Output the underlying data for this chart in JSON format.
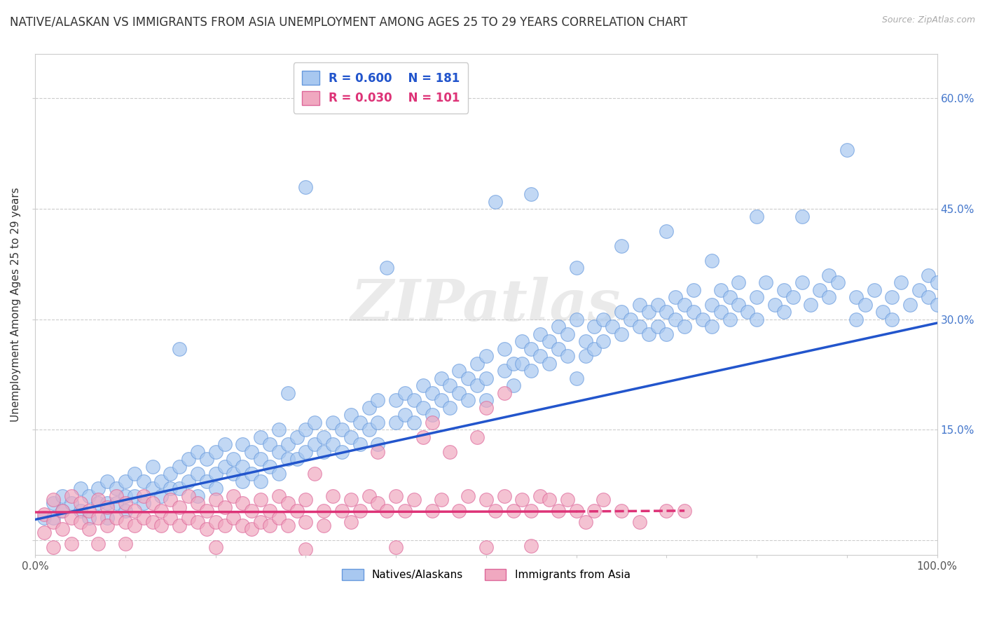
{
  "title": "NATIVE/ALASKAN VS IMMIGRANTS FROM ASIA UNEMPLOYMENT AMONG AGES 25 TO 29 YEARS CORRELATION CHART",
  "source": "Source: ZipAtlas.com",
  "ylabel": "Unemployment Among Ages 25 to 29 years",
  "xlim": [
    0.0,
    1.0
  ],
  "ylim": [
    -0.02,
    0.66
  ],
  "x_ticks": [
    0.0,
    0.1,
    0.2,
    0.3,
    0.4,
    0.5,
    0.6,
    0.7,
    0.8,
    0.9,
    1.0
  ],
  "x_tick_labels": [
    "0.0%",
    "",
    "",
    "",
    "",
    "",
    "",
    "",
    "",
    "",
    "100.0%"
  ],
  "y_ticks": [
    0.0,
    0.15,
    0.3,
    0.45,
    0.6
  ],
  "y_tick_labels_right": [
    "",
    "15.0%",
    "30.0%",
    "45.0%",
    "60.0%"
  ],
  "series": [
    {
      "name": "Natives/Alaskans",
      "R": 0.6,
      "N": 181,
      "color": "#a8c8f0",
      "edge_color": "#6699dd",
      "line_color": "#2255cc",
      "regression_start_x": 0.0,
      "regression_start_y": 0.028,
      "regression_end_x": 1.0,
      "regression_end_y": 0.295
    },
    {
      "name": "Immigrants from Asia",
      "R": 0.03,
      "N": 101,
      "color": "#f0a8c0",
      "edge_color": "#dd6699",
      "line_color": "#dd3377",
      "regression_start_x": 0.0,
      "regression_start_y": 0.038,
      "regression_end_x": 0.72,
      "regression_end_y": 0.04
    }
  ],
  "watermark": "ZIPatlas",
  "background_color": "#ffffff",
  "grid_color": "#cccccc",
  "title_fontsize": 12,
  "axis_label_fontsize": 11,
  "tick_fontsize": 11,
  "legend_fontsize": 12,
  "native_points": [
    [
      0.01,
      0.03
    ],
    [
      0.02,
      0.05
    ],
    [
      0.02,
      0.03
    ],
    [
      0.03,
      0.06
    ],
    [
      0.03,
      0.04
    ],
    [
      0.04,
      0.05
    ],
    [
      0.05,
      0.07
    ],
    [
      0.05,
      0.04
    ],
    [
      0.06,
      0.06
    ],
    [
      0.06,
      0.03
    ],
    [
      0.07,
      0.07
    ],
    [
      0.07,
      0.05
    ],
    [
      0.08,
      0.08
    ],
    [
      0.08,
      0.05
    ],
    [
      0.08,
      0.03
    ],
    [
      0.09,
      0.07
    ],
    [
      0.09,
      0.05
    ],
    [
      0.1,
      0.08
    ],
    [
      0.1,
      0.06
    ],
    [
      0.1,
      0.04
    ],
    [
      0.11,
      0.09
    ],
    [
      0.11,
      0.06
    ],
    [
      0.12,
      0.08
    ],
    [
      0.12,
      0.05
    ],
    [
      0.13,
      0.1
    ],
    [
      0.13,
      0.07
    ],
    [
      0.14,
      0.08
    ],
    [
      0.14,
      0.06
    ],
    [
      0.15,
      0.09
    ],
    [
      0.15,
      0.07
    ],
    [
      0.16,
      0.1
    ],
    [
      0.16,
      0.07
    ],
    [
      0.16,
      0.26
    ],
    [
      0.17,
      0.11
    ],
    [
      0.17,
      0.08
    ],
    [
      0.18,
      0.12
    ],
    [
      0.18,
      0.09
    ],
    [
      0.18,
      0.06
    ],
    [
      0.19,
      0.11
    ],
    [
      0.19,
      0.08
    ],
    [
      0.2,
      0.12
    ],
    [
      0.2,
      0.09
    ],
    [
      0.2,
      0.07
    ],
    [
      0.21,
      0.13
    ],
    [
      0.21,
      0.1
    ],
    [
      0.22,
      0.11
    ],
    [
      0.22,
      0.09
    ],
    [
      0.23,
      0.13
    ],
    [
      0.23,
      0.1
    ],
    [
      0.23,
      0.08
    ],
    [
      0.24,
      0.12
    ],
    [
      0.24,
      0.09
    ],
    [
      0.25,
      0.14
    ],
    [
      0.25,
      0.11
    ],
    [
      0.25,
      0.08
    ],
    [
      0.26,
      0.13
    ],
    [
      0.26,
      0.1
    ],
    [
      0.27,
      0.15
    ],
    [
      0.27,
      0.12
    ],
    [
      0.27,
      0.09
    ],
    [
      0.28,
      0.13
    ],
    [
      0.28,
      0.11
    ],
    [
      0.28,
      0.2
    ],
    [
      0.29,
      0.14
    ],
    [
      0.29,
      0.11
    ],
    [
      0.3,
      0.15
    ],
    [
      0.3,
      0.12
    ],
    [
      0.3,
      0.48
    ],
    [
      0.31,
      0.16
    ],
    [
      0.31,
      0.13
    ],
    [
      0.32,
      0.14
    ],
    [
      0.32,
      0.12
    ],
    [
      0.33,
      0.16
    ],
    [
      0.33,
      0.13
    ],
    [
      0.34,
      0.15
    ],
    [
      0.34,
      0.12
    ],
    [
      0.35,
      0.17
    ],
    [
      0.35,
      0.14
    ],
    [
      0.36,
      0.16
    ],
    [
      0.36,
      0.13
    ],
    [
      0.37,
      0.18
    ],
    [
      0.37,
      0.15
    ],
    [
      0.38,
      0.19
    ],
    [
      0.38,
      0.16
    ],
    [
      0.38,
      0.13
    ],
    [
      0.39,
      0.37
    ],
    [
      0.4,
      0.19
    ],
    [
      0.4,
      0.16
    ],
    [
      0.41,
      0.2
    ],
    [
      0.41,
      0.17
    ],
    [
      0.42,
      0.19
    ],
    [
      0.42,
      0.16
    ],
    [
      0.43,
      0.21
    ],
    [
      0.43,
      0.18
    ],
    [
      0.44,
      0.2
    ],
    [
      0.44,
      0.17
    ],
    [
      0.45,
      0.22
    ],
    [
      0.45,
      0.19
    ],
    [
      0.46,
      0.21
    ],
    [
      0.46,
      0.18
    ],
    [
      0.47,
      0.23
    ],
    [
      0.47,
      0.2
    ],
    [
      0.48,
      0.22
    ],
    [
      0.48,
      0.19
    ],
    [
      0.49,
      0.24
    ],
    [
      0.49,
      0.21
    ],
    [
      0.5,
      0.25
    ],
    [
      0.5,
      0.22
    ],
    [
      0.5,
      0.19
    ],
    [
      0.51,
      0.46
    ],
    [
      0.52,
      0.26
    ],
    [
      0.52,
      0.23
    ],
    [
      0.53,
      0.24
    ],
    [
      0.53,
      0.21
    ],
    [
      0.54,
      0.27
    ],
    [
      0.54,
      0.24
    ],
    [
      0.55,
      0.26
    ],
    [
      0.55,
      0.23
    ],
    [
      0.56,
      0.28
    ],
    [
      0.56,
      0.25
    ],
    [
      0.57,
      0.27
    ],
    [
      0.57,
      0.24
    ],
    [
      0.58,
      0.29
    ],
    [
      0.58,
      0.26
    ],
    [
      0.59,
      0.28
    ],
    [
      0.59,
      0.25
    ],
    [
      0.6,
      0.22
    ],
    [
      0.6,
      0.3
    ],
    [
      0.61,
      0.27
    ],
    [
      0.61,
      0.25
    ],
    [
      0.62,
      0.29
    ],
    [
      0.62,
      0.26
    ],
    [
      0.63,
      0.3
    ],
    [
      0.63,
      0.27
    ],
    [
      0.64,
      0.29
    ],
    [
      0.65,
      0.31
    ],
    [
      0.65,
      0.28
    ],
    [
      0.66,
      0.3
    ],
    [
      0.67,
      0.32
    ],
    [
      0.67,
      0.29
    ],
    [
      0.68,
      0.31
    ],
    [
      0.68,
      0.28
    ],
    [
      0.69,
      0.32
    ],
    [
      0.69,
      0.29
    ],
    [
      0.7,
      0.31
    ],
    [
      0.7,
      0.28
    ],
    [
      0.71,
      0.33
    ],
    [
      0.71,
      0.3
    ],
    [
      0.72,
      0.32
    ],
    [
      0.72,
      0.29
    ],
    [
      0.73,
      0.34
    ],
    [
      0.73,
      0.31
    ],
    [
      0.74,
      0.3
    ],
    [
      0.75,
      0.32
    ],
    [
      0.75,
      0.29
    ],
    [
      0.76,
      0.34
    ],
    [
      0.76,
      0.31
    ],
    [
      0.77,
      0.33
    ],
    [
      0.77,
      0.3
    ],
    [
      0.78,
      0.35
    ],
    [
      0.78,
      0.32
    ],
    [
      0.79,
      0.31
    ],
    [
      0.8,
      0.33
    ],
    [
      0.8,
      0.3
    ],
    [
      0.81,
      0.35
    ],
    [
      0.82,
      0.32
    ],
    [
      0.83,
      0.34
    ],
    [
      0.83,
      0.31
    ],
    [
      0.84,
      0.33
    ],
    [
      0.85,
      0.35
    ],
    [
      0.86,
      0.32
    ],
    [
      0.87,
      0.34
    ],
    [
      0.88,
      0.36
    ],
    [
      0.88,
      0.33
    ],
    [
      0.89,
      0.35
    ],
    [
      0.9,
      0.53
    ],
    [
      0.91,
      0.33
    ],
    [
      0.91,
      0.3
    ],
    [
      0.92,
      0.32
    ],
    [
      0.93,
      0.34
    ],
    [
      0.94,
      0.31
    ],
    [
      0.95,
      0.33
    ],
    [
      0.95,
      0.3
    ],
    [
      0.96,
      0.35
    ],
    [
      0.97,
      0.32
    ],
    [
      0.98,
      0.34
    ],
    [
      0.99,
      0.36
    ],
    [
      0.99,
      0.33
    ],
    [
      1.0,
      0.35
    ],
    [
      1.0,
      0.32
    ],
    [
      0.85,
      0.44
    ],
    [
      0.7,
      0.42
    ],
    [
      0.65,
      0.4
    ],
    [
      0.55,
      0.47
    ],
    [
      0.6,
      0.37
    ],
    [
      0.75,
      0.38
    ],
    [
      0.8,
      0.44
    ]
  ],
  "immigrant_points": [
    [
      0.01,
      0.035
    ],
    [
      0.01,
      0.01
    ],
    [
      0.02,
      0.055
    ],
    [
      0.02,
      0.025
    ],
    [
      0.02,
      -0.01
    ],
    [
      0.03,
      0.04
    ],
    [
      0.03,
      0.015
    ],
    [
      0.04,
      0.06
    ],
    [
      0.04,
      0.03
    ],
    [
      0.04,
      -0.005
    ],
    [
      0.05,
      0.05
    ],
    [
      0.05,
      0.025
    ],
    [
      0.06,
      0.04
    ],
    [
      0.06,
      0.015
    ],
    [
      0.07,
      0.055
    ],
    [
      0.07,
      0.03
    ],
    [
      0.07,
      -0.005
    ],
    [
      0.08,
      0.045
    ],
    [
      0.08,
      0.02
    ],
    [
      0.09,
      0.06
    ],
    [
      0.09,
      0.03
    ],
    [
      0.1,
      0.05
    ],
    [
      0.1,
      0.025
    ],
    [
      0.1,
      -0.005
    ],
    [
      0.11,
      0.04
    ],
    [
      0.11,
      0.02
    ],
    [
      0.12,
      0.06
    ],
    [
      0.12,
      0.03
    ],
    [
      0.13,
      0.05
    ],
    [
      0.13,
      0.025
    ],
    [
      0.14,
      0.04
    ],
    [
      0.14,
      0.02
    ],
    [
      0.15,
      0.055
    ],
    [
      0.15,
      0.03
    ],
    [
      0.16,
      0.045
    ],
    [
      0.16,
      0.02
    ],
    [
      0.17,
      0.06
    ],
    [
      0.17,
      0.03
    ],
    [
      0.18,
      0.05
    ],
    [
      0.18,
      0.025
    ],
    [
      0.19,
      0.04
    ],
    [
      0.19,
      0.015
    ],
    [
      0.2,
      0.055
    ],
    [
      0.2,
      0.025
    ],
    [
      0.21,
      0.045
    ],
    [
      0.21,
      0.02
    ],
    [
      0.22,
      0.06
    ],
    [
      0.22,
      0.03
    ],
    [
      0.23,
      0.05
    ],
    [
      0.23,
      0.02
    ],
    [
      0.24,
      0.04
    ],
    [
      0.24,
      0.015
    ],
    [
      0.25,
      0.055
    ],
    [
      0.25,
      0.025
    ],
    [
      0.26,
      0.04
    ],
    [
      0.26,
      0.02
    ],
    [
      0.27,
      0.06
    ],
    [
      0.27,
      0.03
    ],
    [
      0.28,
      0.05
    ],
    [
      0.28,
      0.02
    ],
    [
      0.29,
      0.04
    ],
    [
      0.3,
      0.055
    ],
    [
      0.3,
      0.025
    ],
    [
      0.31,
      0.09
    ],
    [
      0.32,
      0.04
    ],
    [
      0.32,
      0.02
    ],
    [
      0.33,
      0.06
    ],
    [
      0.34,
      0.04
    ],
    [
      0.35,
      0.055
    ],
    [
      0.35,
      0.025
    ],
    [
      0.36,
      0.04
    ],
    [
      0.37,
      0.06
    ],
    [
      0.38,
      0.12
    ],
    [
      0.38,
      0.05
    ],
    [
      0.39,
      0.04
    ],
    [
      0.4,
      0.06
    ],
    [
      0.41,
      0.04
    ],
    [
      0.42,
      0.055
    ],
    [
      0.43,
      0.14
    ],
    [
      0.44,
      0.04
    ],
    [
      0.44,
      0.16
    ],
    [
      0.45,
      0.055
    ],
    [
      0.46,
      0.12
    ],
    [
      0.47,
      0.04
    ],
    [
      0.48,
      0.06
    ],
    [
      0.49,
      0.14
    ],
    [
      0.5,
      0.18
    ],
    [
      0.5,
      0.055
    ],
    [
      0.51,
      0.04
    ],
    [
      0.52,
      0.06
    ],
    [
      0.53,
      0.04
    ],
    [
      0.54,
      0.055
    ],
    [
      0.55,
      0.04
    ],
    [
      0.56,
      0.06
    ],
    [
      0.57,
      0.055
    ],
    [
      0.58,
      0.04
    ],
    [
      0.59,
      0.055
    ],
    [
      0.6,
      0.04
    ],
    [
      0.61,
      0.025
    ],
    [
      0.62,
      0.04
    ],
    [
      0.63,
      0.055
    ],
    [
      0.65,
      0.04
    ],
    [
      0.67,
      0.025
    ],
    [
      0.7,
      0.04
    ],
    [
      0.72,
      0.04
    ],
    [
      0.4,
      -0.01
    ],
    [
      0.5,
      -0.01
    ],
    [
      0.52,
      0.2
    ],
    [
      0.55,
      -0.008
    ],
    [
      0.3,
      -0.012
    ],
    [
      0.2,
      -0.01
    ]
  ]
}
